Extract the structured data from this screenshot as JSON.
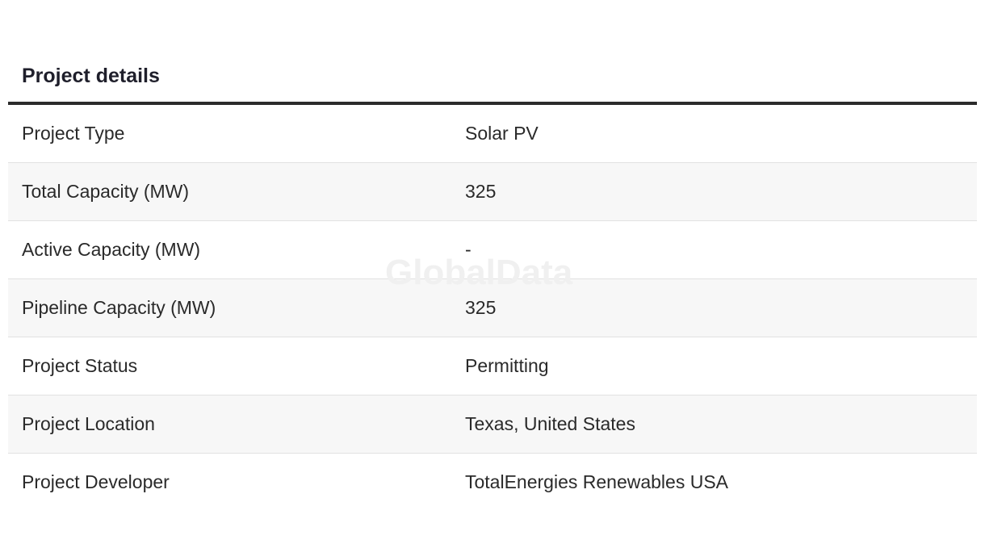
{
  "section": {
    "title": "Project details"
  },
  "watermark": "GlobalData",
  "rows": [
    {
      "label": "Project Type",
      "value": "Solar PV"
    },
    {
      "label": "Total Capacity (MW)",
      "value": "325"
    },
    {
      "label": "Active Capacity (MW)",
      "value": "-"
    },
    {
      "label": "Pipeline Capacity (MW)",
      "value": "325"
    },
    {
      "label": "Project Status",
      "value": "Permitting"
    },
    {
      "label": "Project Location",
      "value": "Texas, United States"
    },
    {
      "label": "Project Developer",
      "value": "TotalEnergies Renewables USA"
    }
  ],
  "colors": {
    "heading_text": "#1f1f2b",
    "rule": "#2b2b2b",
    "row_alt_background": "#f7f7f7",
    "row_border": "#e2e2e2",
    "watermark": "#f0f0f0"
  }
}
